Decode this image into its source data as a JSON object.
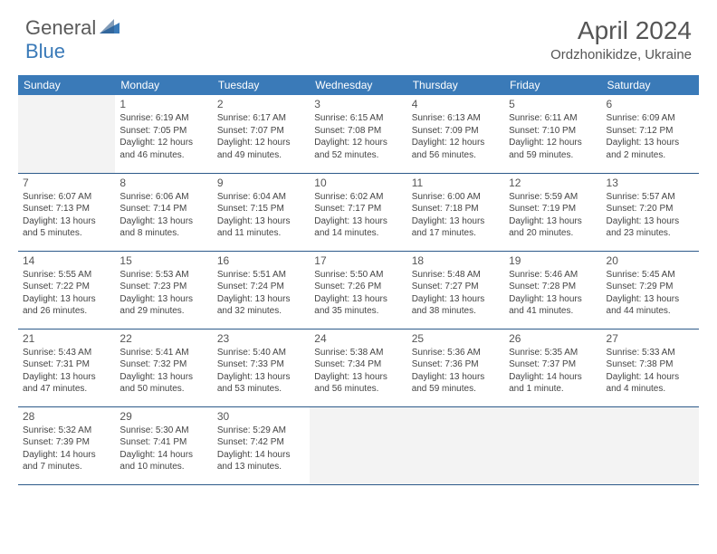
{
  "brand": {
    "part1": "General",
    "part2": "Blue"
  },
  "title": "April 2024",
  "location": "Ordzhonikidze, Ukraine",
  "colors": {
    "header_bg": "#3a7ab8",
    "header_text": "#ffffff",
    "cell_border": "#2d5a8a",
    "empty_bg": "#f3f3f3",
    "text": "#444444",
    "title_text": "#555555"
  },
  "day_headers": [
    "Sunday",
    "Monday",
    "Tuesday",
    "Wednesday",
    "Thursday",
    "Friday",
    "Saturday"
  ],
  "weeks": [
    [
      {
        "num": "",
        "info": "",
        "empty": true
      },
      {
        "num": "1",
        "info": "Sunrise: 6:19 AM\nSunset: 7:05 PM\nDaylight: 12 hours and 46 minutes."
      },
      {
        "num": "2",
        "info": "Sunrise: 6:17 AM\nSunset: 7:07 PM\nDaylight: 12 hours and 49 minutes."
      },
      {
        "num": "3",
        "info": "Sunrise: 6:15 AM\nSunset: 7:08 PM\nDaylight: 12 hours and 52 minutes."
      },
      {
        "num": "4",
        "info": "Sunrise: 6:13 AM\nSunset: 7:09 PM\nDaylight: 12 hours and 56 minutes."
      },
      {
        "num": "5",
        "info": "Sunrise: 6:11 AM\nSunset: 7:10 PM\nDaylight: 12 hours and 59 minutes."
      },
      {
        "num": "6",
        "info": "Sunrise: 6:09 AM\nSunset: 7:12 PM\nDaylight: 13 hours and 2 minutes."
      }
    ],
    [
      {
        "num": "7",
        "info": "Sunrise: 6:07 AM\nSunset: 7:13 PM\nDaylight: 13 hours and 5 minutes."
      },
      {
        "num": "8",
        "info": "Sunrise: 6:06 AM\nSunset: 7:14 PM\nDaylight: 13 hours and 8 minutes."
      },
      {
        "num": "9",
        "info": "Sunrise: 6:04 AM\nSunset: 7:15 PM\nDaylight: 13 hours and 11 minutes."
      },
      {
        "num": "10",
        "info": "Sunrise: 6:02 AM\nSunset: 7:17 PM\nDaylight: 13 hours and 14 minutes."
      },
      {
        "num": "11",
        "info": "Sunrise: 6:00 AM\nSunset: 7:18 PM\nDaylight: 13 hours and 17 minutes."
      },
      {
        "num": "12",
        "info": "Sunrise: 5:59 AM\nSunset: 7:19 PM\nDaylight: 13 hours and 20 minutes."
      },
      {
        "num": "13",
        "info": "Sunrise: 5:57 AM\nSunset: 7:20 PM\nDaylight: 13 hours and 23 minutes."
      }
    ],
    [
      {
        "num": "14",
        "info": "Sunrise: 5:55 AM\nSunset: 7:22 PM\nDaylight: 13 hours and 26 minutes."
      },
      {
        "num": "15",
        "info": "Sunrise: 5:53 AM\nSunset: 7:23 PM\nDaylight: 13 hours and 29 minutes."
      },
      {
        "num": "16",
        "info": "Sunrise: 5:51 AM\nSunset: 7:24 PM\nDaylight: 13 hours and 32 minutes."
      },
      {
        "num": "17",
        "info": "Sunrise: 5:50 AM\nSunset: 7:26 PM\nDaylight: 13 hours and 35 minutes."
      },
      {
        "num": "18",
        "info": "Sunrise: 5:48 AM\nSunset: 7:27 PM\nDaylight: 13 hours and 38 minutes."
      },
      {
        "num": "19",
        "info": "Sunrise: 5:46 AM\nSunset: 7:28 PM\nDaylight: 13 hours and 41 minutes."
      },
      {
        "num": "20",
        "info": "Sunrise: 5:45 AM\nSunset: 7:29 PM\nDaylight: 13 hours and 44 minutes."
      }
    ],
    [
      {
        "num": "21",
        "info": "Sunrise: 5:43 AM\nSunset: 7:31 PM\nDaylight: 13 hours and 47 minutes."
      },
      {
        "num": "22",
        "info": "Sunrise: 5:41 AM\nSunset: 7:32 PM\nDaylight: 13 hours and 50 minutes."
      },
      {
        "num": "23",
        "info": "Sunrise: 5:40 AM\nSunset: 7:33 PM\nDaylight: 13 hours and 53 minutes."
      },
      {
        "num": "24",
        "info": "Sunrise: 5:38 AM\nSunset: 7:34 PM\nDaylight: 13 hours and 56 minutes."
      },
      {
        "num": "25",
        "info": "Sunrise: 5:36 AM\nSunset: 7:36 PM\nDaylight: 13 hours and 59 minutes."
      },
      {
        "num": "26",
        "info": "Sunrise: 5:35 AM\nSunset: 7:37 PM\nDaylight: 14 hours and 1 minute."
      },
      {
        "num": "27",
        "info": "Sunrise: 5:33 AM\nSunset: 7:38 PM\nDaylight: 14 hours and 4 minutes."
      }
    ],
    [
      {
        "num": "28",
        "info": "Sunrise: 5:32 AM\nSunset: 7:39 PM\nDaylight: 14 hours and 7 minutes."
      },
      {
        "num": "29",
        "info": "Sunrise: 5:30 AM\nSunset: 7:41 PM\nDaylight: 14 hours and 10 minutes."
      },
      {
        "num": "30",
        "info": "Sunrise: 5:29 AM\nSunset: 7:42 PM\nDaylight: 14 hours and 13 minutes."
      },
      {
        "num": "",
        "info": "",
        "empty": true
      },
      {
        "num": "",
        "info": "",
        "empty": true
      },
      {
        "num": "",
        "info": "",
        "empty": true
      },
      {
        "num": "",
        "info": "",
        "empty": true
      }
    ]
  ]
}
